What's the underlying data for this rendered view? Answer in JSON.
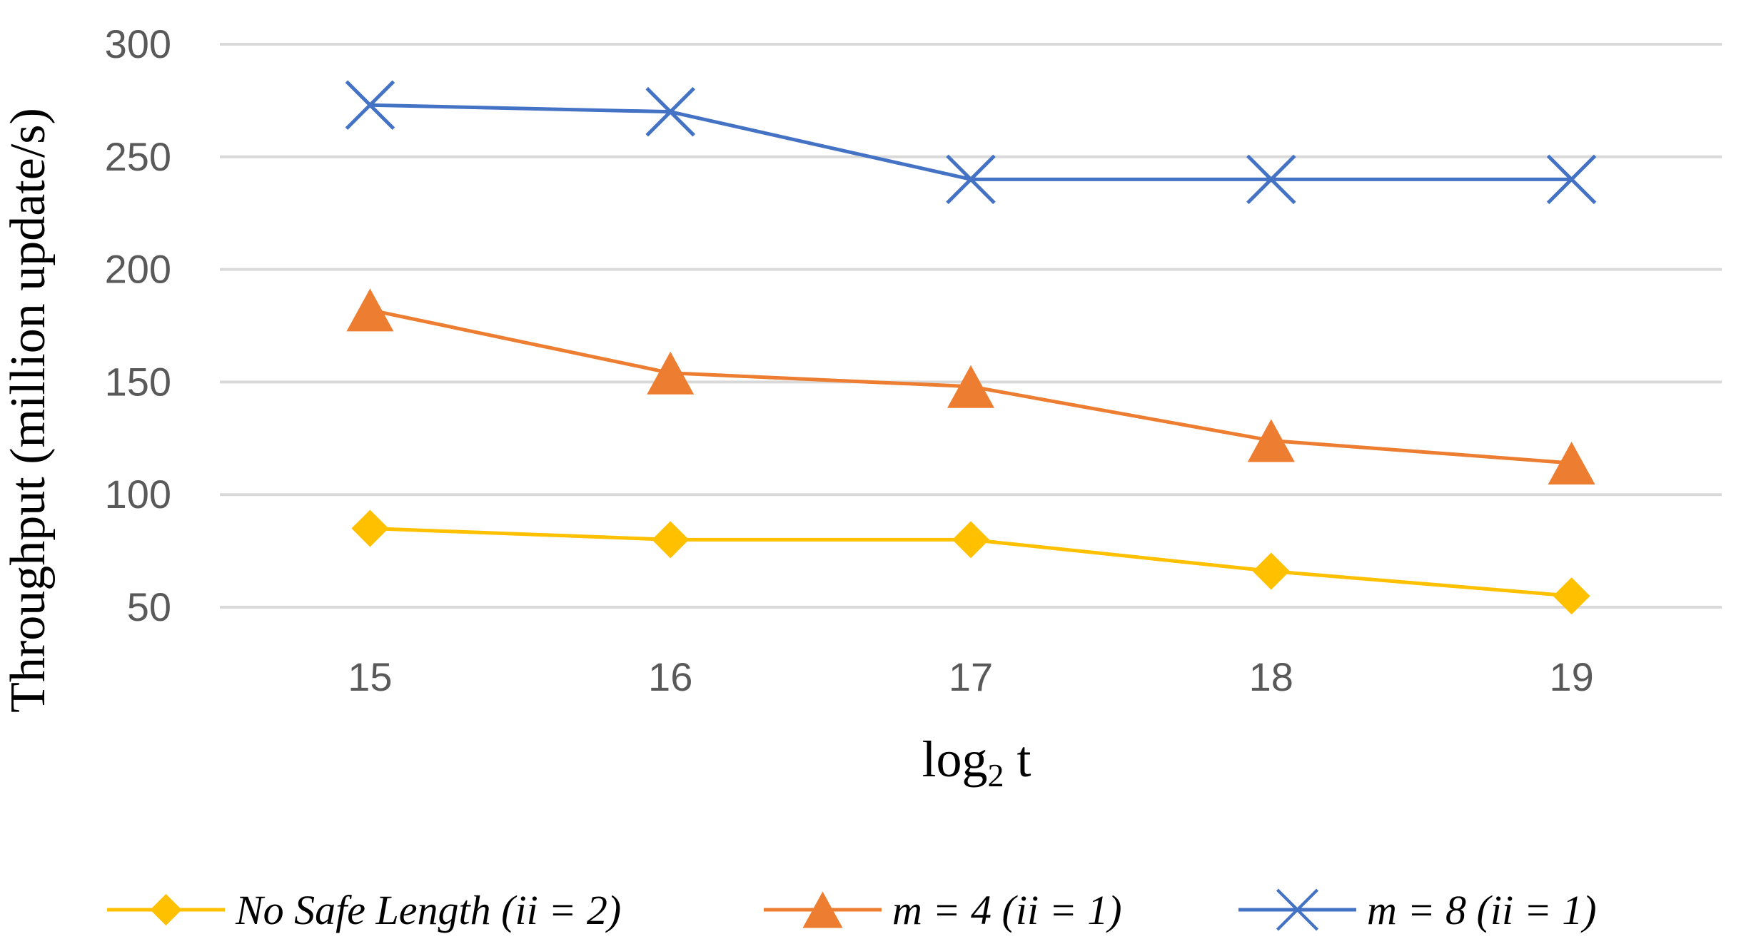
{
  "chart_data": {
    "type": "line",
    "title": "",
    "xlabel": "log",
    "xlabel_subscript": "2",
    "xlabel_suffix": " t",
    "ylabel": "Throughput (million update/s)",
    "categories": [
      "15",
      "16",
      "17",
      "18",
      "19"
    ],
    "ylim": [
      50,
      300
    ],
    "yticks": [
      50,
      100,
      150,
      200,
      250,
      300
    ],
    "grid": true,
    "legend_position": "bottom",
    "series": [
      {
        "name": "No Safe Length (ii = 2)",
        "marker": "diamond",
        "color": "#FFC000",
        "values": [
          85,
          80,
          80,
          66,
          55
        ]
      },
      {
        "name": "m = 4 (ii = 1)",
        "marker": "triangle",
        "color": "#ED7D31",
        "values": [
          182,
          154,
          148,
          124,
          114
        ]
      },
      {
        "name": "m = 8 (ii = 1)",
        "marker": "x",
        "color": "#4472C4",
        "values": [
          273,
          270,
          240,
          240,
          240
        ]
      }
    ]
  }
}
